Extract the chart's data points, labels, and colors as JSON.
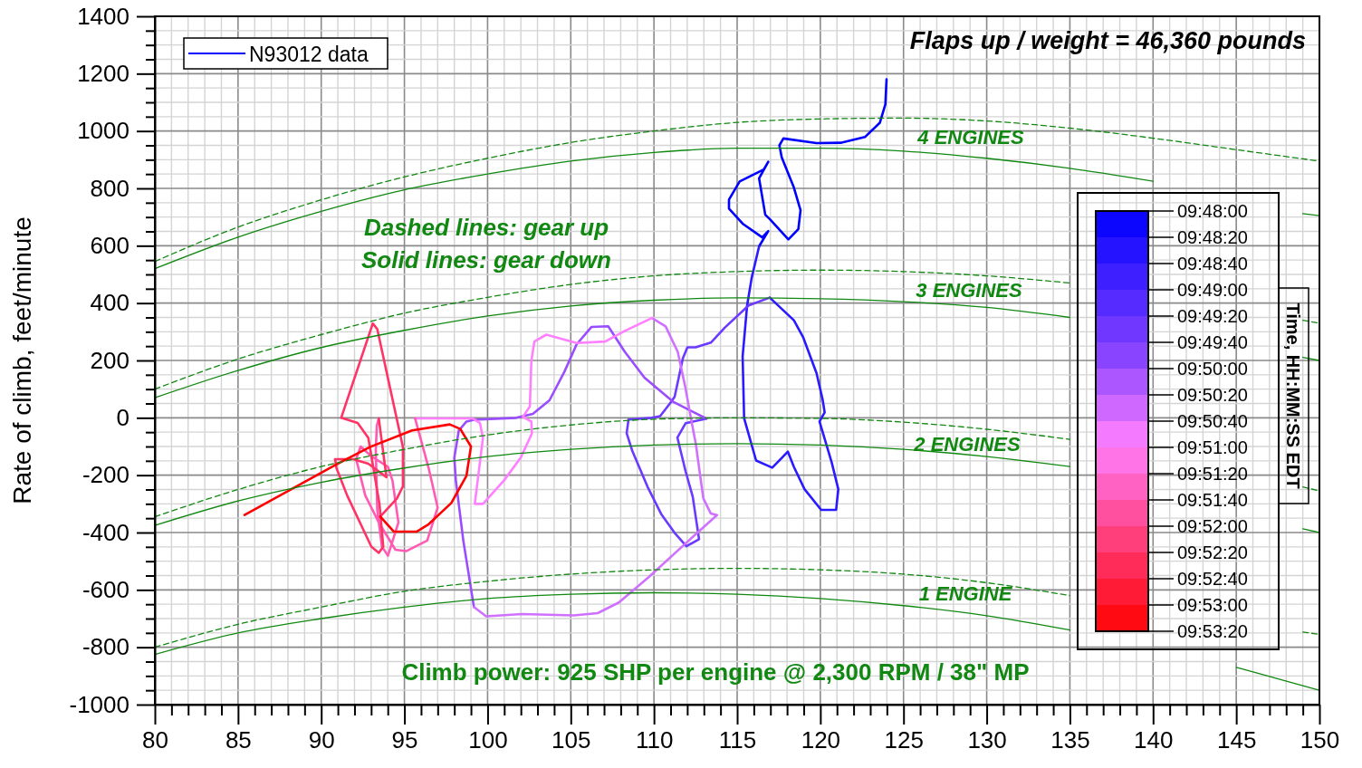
{
  "chart_data": {
    "type": "line",
    "title": "Flaps up / weight = 46,360 pounds",
    "ylabel": "Rate of climb, feet/minute",
    "clabel": "Time, HH:MM:SS EDT",
    "xlim": [
      80,
      150
    ],
    "ylim": [
      -1000,
      1400
    ],
    "grid": true,
    "legend": "top left",
    "xticks": [
      80,
      {
        "value": 81,
        "label": null
      },
      {
        "value": 82,
        "label": null
      },
      {
        "value": 83,
        "label": null
      },
      {
        "value": 84,
        "label": null
      },
      85,
      {
        "value": 86,
        "label": null
      },
      {
        "value": 87,
        "label": null
      },
      {
        "value": 88,
        "label": null
      },
      {
        "value": 89,
        "label": null
      },
      90,
      {
        "value": 91,
        "label": null
      },
      {
        "value": 92,
        "label": null
      },
      {
        "value": 93,
        "label": null
      },
      {
        "value": 94,
        "label": null
      },
      95,
      {
        "value": 96,
        "label": null
      },
      {
        "value": 97,
        "label": null
      },
      {
        "value": 98,
        "label": null
      },
      {
        "value": 99,
        "label": null
      },
      100,
      {
        "value": 101,
        "label": null
      },
      {
        "value": 102,
        "label": null
      },
      {
        "value": 103,
        "label": null
      },
      {
        "value": 104,
        "label": null
      },
      105,
      {
        "value": 106,
        "label": null
      },
      {
        "value": 107,
        "label": null
      },
      {
        "value": 108,
        "label": null
      },
      {
        "value": 109,
        "label": null
      },
      110,
      {
        "value": 111,
        "label": null
      },
      {
        "value": 112,
        "label": null
      },
      {
        "value": 113,
        "label": null
      },
      {
        "value": 114,
        "label": null
      },
      115,
      {
        "value": 116,
        "label": null
      },
      {
        "value": 117,
        "label": null
      },
      {
        "value": 118,
        "label": null
      },
      {
        "value": 119,
        "label": null
      },
      120,
      {
        "value": 121,
        "label": null
      },
      {
        "value": 122,
        "label": null
      },
      {
        "value": 123,
        "label": null
      },
      {
        "value": 124,
        "label": null
      },
      125,
      {
        "value": 126,
        "label": null
      },
      {
        "value": 127,
        "label": null
      },
      {
        "value": 128,
        "label": null
      },
      {
        "value": 129,
        "label": null
      },
      130,
      {
        "value": 131,
        "label": null
      },
      {
        "value": 132,
        "label": null
      },
      {
        "value": 133,
        "label": null
      },
      {
        "value": 134,
        "label": null
      },
      135,
      {
        "value": 136,
        "label": null
      },
      {
        "value": 137,
        "label": null
      },
      {
        "value": 138,
        "label": null
      },
      {
        "value": 139,
        "label": null
      },
      140,
      {
        "value": 141,
        "label": null
      },
      {
        "value": 142,
        "label": null
      },
      {
        "value": 143,
        "label": null
      },
      {
        "value": 144,
        "label": null
      },
      145,
      {
        "value": 146,
        "label": null
      },
      {
        "value": 147,
        "label": null
      },
      {
        "value": 148,
        "label": null
      },
      {
        "value": 149,
        "label": null
      },
      150
    ],
    "yticks": [
      -1000,
      {
        "value": -950,
        "label": null
      },
      {
        "value": -900,
        "label": null
      },
      {
        "value": -850,
        "label": null
      },
      -800,
      {
        "value": -750,
        "label": null
      },
      {
        "value": -700,
        "label": null
      },
      {
        "value": -650,
        "label": null
      },
      -600,
      {
        "value": -550,
        "label": null
      },
      {
        "value": -500,
        "label": null
      },
      {
        "value": -450,
        "label": null
      },
      -400,
      {
        "value": -350,
        "label": null
      },
      {
        "value": -300,
        "label": null
      },
      {
        "value": -250,
        "label": null
      },
      -200,
      {
        "value": -150,
        "label": null
      },
      {
        "value": -100,
        "label": null
      },
      {
        "value": -50,
        "label": null
      },
      0,
      {
        "value": 50,
        "label": null
      },
      {
        "value": 100,
        "label": null
      },
      {
        "value": 150,
        "label": null
      },
      200,
      {
        "value": 250,
        "label": null
      },
      {
        "value": 300,
        "label": null
      },
      {
        "value": 350,
        "label": null
      },
      400,
      {
        "value": 450,
        "label": null
      },
      {
        "value": 500,
        "label": null
      },
      {
        "value": 550,
        "label": null
      },
      600,
      {
        "value": 650,
        "label": null
      },
      {
        "value": 700,
        "label": null
      },
      {
        "value": 750,
        "label": null
      },
      800,
      {
        "value": 850,
        "label": null
      },
      {
        "value": 900,
        "label": null
      },
      {
        "value": 950,
        "label": null
      },
      1000,
      {
        "value": 1050,
        "label": null
      },
      {
        "value": 1100,
        "label": null
      },
      {
        "value": 1150,
        "label": null
      },
      1200,
      {
        "value": 1250,
        "label": null
      },
      {
        "value": 1300,
        "label": null
      },
      {
        "value": 1350,
        "label": null
      },
      1400
    ],
    "annotations": [
      "4 ENGINES",
      "3 ENGINES",
      "2 ENGINES",
      "1 ENGINE",
      "Dashed lines: gear up",
      "Solid lines: gear down",
      "Climb power: 925 SHP per engine @ 2,300 RPM / 38\" MP",
      "09:48:00",
      "09:48:20",
      "09:48:40",
      "09:49:00",
      "09:49:20",
      "09:49:40",
      "09:50:00",
      "09:50:20",
      "09:50:40",
      "09:51:00",
      "09:51:20",
      "09:51:40",
      "09:52:00",
      "09:52:20",
      "09:52:40",
      "09:53:00",
      "09:53:20"
    ],
    "series": [
      {
        "name": "N93012 data",
        "color": "#0000ff",
        "x": [
          123.98,
          123.91,
          123.58,
          122.68,
          121.22,
          119.77,
          117.78,
          117.54,
          117.68,
          118.41,
          118.81,
          118.68,
          118.08,
          116.96,
          116.69,
          116.32,
          116.87,
          116.6,
          115.15,
          114.51,
          114.51,
          115.33,
          116.51,
          116.87,
          116.32
        ],
        "values": [
          1180,
          1093,
          1029,
          979,
          959,
          958,
          974,
          950,
          908,
          803,
          724,
          658,
          622,
          693,
          708,
          835,
          893,
          866,
          824,
          761,
          729,
          677,
          629,
          651,
          598
        ]
      },
      {
        "color": "#2a1aff",
        "x": [
          116.32,
          115.87,
          115.6,
          115.33,
          115.42,
          116.14,
          117.11,
          118.05,
          118.41,
          119.05,
          120.05,
          120.95,
          121.08,
          120.68,
          119.95,
          120.26,
          120.13,
          119.77,
          118.96,
          118.41,
          116.96
        ],
        "values": [
          598,
          487,
          392,
          214,
          -2,
          -149,
          -174,
          -118,
          -171,
          -249,
          -321,
          -321,
          -249,
          -155,
          -13,
          19,
          66,
          156,
          282,
          340,
          419
        ]
      },
      {
        "color": "#6a3aff",
        "x": [
          116.96,
          115.69,
          114.25,
          113.42,
          112.5,
          112.01,
          111.74,
          111.24,
          110.97,
          110.37,
          109.88,
          108.47,
          108.36,
          108.69,
          109.61,
          110.43,
          111.24,
          111.95,
          112.71,
          112.33,
          111.9,
          111.41,
          111.9,
          113.15
        ],
        "values": [
          419,
          392,
          314,
          262,
          246,
          246,
          208,
          73,
          51,
          6,
          0,
          -6,
          -54,
          -114,
          -240,
          -335,
          -401,
          -448,
          -423,
          -275,
          -186,
          -69,
          -19,
          -3
        ]
      },
      {
        "color": "#9a4cff",
        "x": [
          113.15,
          111.15,
          109.43,
          108.25,
          107.25,
          106.25,
          105.35,
          104.62,
          103.72,
          102.72,
          101.72,
          99.18,
          98.73,
          98.27,
          98.0,
          98.09,
          98.54,
          99.18
        ],
        "values": [
          -3,
          56,
          140,
          230,
          319,
          317,
          256,
          161,
          61,
          14,
          0,
          -7,
          -13,
          -44,
          -139,
          -218,
          -428,
          -660
        ]
      },
      {
        "color": "#d070ff",
        "x": [
          99.18,
          99.91,
          102.08,
          105.17,
          106.62,
          107.89,
          109.7,
          111.88,
          113.79,
          113.42,
          112.97,
          112.79,
          112.52,
          112.24,
          111.88,
          111.43,
          110.7,
          109.88
        ],
        "values": [
          -660,
          -692,
          -684,
          -689,
          -681,
          -644,
          -555,
          -439,
          -339,
          -334,
          -281,
          -207,
          -92,
          -7,
          108,
          230,
          319,
          348
        ]
      },
      {
        "color": "#ff80ff",
        "x": [
          109.88,
          108.25,
          107.07,
          105.35,
          103.53,
          102.81,
          102.63,
          102.54,
          102.12,
          102.63,
          102.66,
          101.99,
          100.99,
          99.72,
          99.23,
          99.72,
          99.54,
          99.09,
          95.64
        ],
        "values": [
          348,
          303,
          266,
          261,
          290,
          266,
          198,
          40,
          3,
          -13,
          -55,
          -139,
          -218,
          -300,
          -300,
          -70,
          -18,
          -2,
          -2
        ]
      },
      {
        "color": "#ff5ab4",
        "x": [
          95.64,
          96.46,
          97.0,
          96.37,
          95.1,
          94.46,
          93.46,
          92.65,
          92.1,
          92.37,
          93.01,
          94.01,
          94.28,
          94.64,
          94.01,
          93.65,
          93.37,
          93.28,
          93.34,
          93.46
        ],
        "values": [
          -2,
          -176,
          -313,
          -428,
          -465,
          -460,
          -365,
          -271,
          -144,
          -100,
          -134,
          -171,
          -218,
          -365,
          -481,
          -449,
          -323,
          -113,
          -28,
          -2
        ]
      },
      {
        "color": "#ff3366",
        "x": [
          93.46,
          93.92,
          92.83,
          91.92,
          90.83,
          90.92,
          91.56,
          93.01,
          93.46,
          93.73,
          93.5,
          92.83,
          92.19,
          91.2,
          93.1,
          93.37,
          94.91,
          94.91,
          94.55,
          93.55
        ],
        "values": [
          -2,
          -207,
          -160,
          -144,
          -144,
          -176,
          -271,
          -449,
          -471,
          -449,
          -300,
          -70,
          -18,
          0,
          329,
          309,
          -102,
          -239,
          -281,
          -344
        ]
      },
      {
        "color": "#ff0000",
        "x": [
          93.55,
          94.37,
          95.73,
          96.46,
          97.82,
          98.73,
          99.0,
          98.36,
          97.73,
          95.46,
          92.92,
          90.83,
          85.39
        ],
        "values": [
          -344,
          -397,
          -397,
          -371,
          -297,
          -202,
          -100,
          -39,
          -23,
          -44,
          -102,
          -165,
          -339
        ]
      },
      {
        "color": "#118811",
        "line_style": "solid",
        "x": [
          80,
          85,
          90,
          95,
          100,
          105,
          110,
          115,
          120,
          125,
          130,
          135,
          140,
          145,
          149,
          150
        ],
        "values": [
          520,
          630,
          720,
          795,
          850,
          895,
          925,
          940,
          940,
          930,
          905,
          870,
          825,
          null,
          712,
          705
        ]
      },
      {
        "color": "#118811",
        "line_style": "dashed",
        "x": [
          80,
          85,
          90,
          95,
          100,
          105,
          110,
          115,
          120,
          125,
          130,
          135,
          140,
          145,
          150
        ],
        "values": [
          545,
          665,
          760,
          840,
          905,
          960,
          1000,
          1030,
          1042,
          1045,
          1035,
          1010,
          975,
          935,
          895
        ]
      },
      {
        "color": "#118811",
        "line_style": "solid",
        "x": [
          80,
          85,
          90,
          95,
          100,
          105,
          110,
          115,
          120,
          125,
          130,
          135,
          140,
          145,
          149,
          150
        ],
        "values": [
          70,
          165,
          245,
          305,
          355,
          390,
          410,
          418,
          415,
          405,
          385,
          350,
          null,
          null,
          211,
          200
        ]
      },
      {
        "color": "#118811",
        "line_style": "dashed",
        "x": [
          80,
          85,
          90,
          95,
          100,
          105,
          110,
          115,
          120,
          125,
          130,
          135,
          140,
          145,
          149,
          150
        ],
        "values": [
          100,
          205,
          290,
          365,
          420,
          465,
          495,
          510,
          515,
          510,
          495,
          470,
          null,
          null,
          340,
          330
        ]
      },
      {
        "color": "#118811",
        "line_style": "solid",
        "x": [
          80,
          85,
          90,
          95,
          100,
          105,
          110,
          115,
          120,
          125,
          130,
          135,
          140,
          145,
          149,
          150
        ],
        "values": [
          -375,
          -290,
          -225,
          -175,
          -135,
          -110,
          -95,
          -90,
          -95,
          -110,
          -135,
          -170,
          null,
          null,
          -387,
          -400
        ]
      },
      {
        "color": "#118811",
        "line_style": "dashed",
        "x": [
          80,
          85,
          90,
          95,
          100,
          105,
          110,
          115,
          120,
          125,
          130,
          135,
          140,
          145,
          149,
          150
        ],
        "values": [
          -345,
          -250,
          -170,
          -110,
          -60,
          -25,
          -5,
          0,
          -2,
          -15,
          -40,
          -75,
          null,
          null,
          -241,
          -255
        ]
      },
      {
        "color": "#118811",
        "line_style": "solid",
        "x": [
          80,
          85,
          90,
          95,
          100,
          105,
          110,
          115,
          120,
          125,
          130,
          135,
          140,
          145,
          149,
          150
        ],
        "values": [
          -825,
          -750,
          -700,
          -660,
          -630,
          -615,
          -610,
          -615,
          -630,
          -655,
          -690,
          -740,
          null,
          -870,
          -934,
          -950
        ]
      },
      {
        "color": "#118811",
        "line_style": "dashed",
        "x": [
          80,
          85,
          90,
          95,
          100,
          105,
          110,
          115,
          120,
          125,
          130,
          135,
          140,
          145,
          149,
          150
        ],
        "values": [
          -800,
          -720,
          -660,
          -605,
          -570,
          -545,
          -530,
          -525,
          -530,
          -545,
          -575,
          -620,
          null,
          null,
          -747,
          -755
        ]
      }
    ]
  }
}
